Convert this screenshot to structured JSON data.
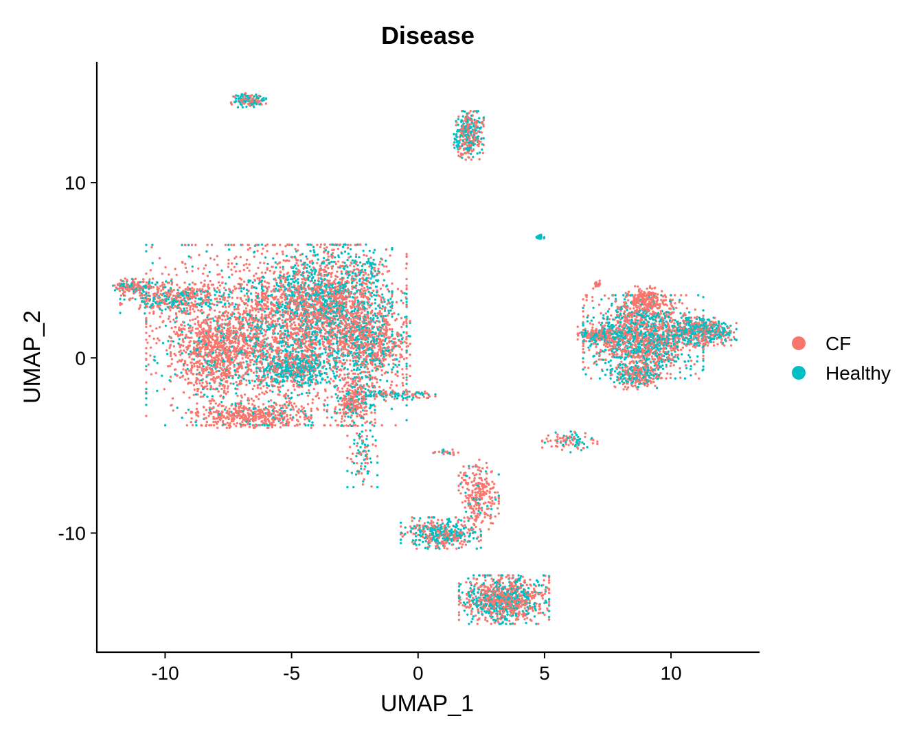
{
  "chart_data": {
    "type": "scatter",
    "title": "Disease",
    "xlabel": "UMAP_1",
    "ylabel": "UMAP_2",
    "xlim": [
      -12.7,
      13.5
    ],
    "ylim": [
      -16.8,
      16.9
    ],
    "xticks": [
      -10,
      -5,
      0,
      5,
      10
    ],
    "xtick_labels": [
      "-10",
      "-5",
      "0",
      "5",
      "10"
    ],
    "yticks": [
      -10,
      0,
      10
    ],
    "ytick_labels": [
      "-10",
      "0",
      "10"
    ],
    "grid": false,
    "legend_position": "right",
    "series": [
      {
        "name": "CF",
        "color": "#F8766D"
      },
      {
        "name": "Healthy",
        "color": "#00BFC4"
      }
    ],
    "clusters": [
      {
        "id": "main-left-body",
        "center": [
          -5.6,
          1.3
        ],
        "spread": [
          2.6,
          2.6
        ],
        "count": 2600,
        "healthy_fraction": 0.28
      },
      {
        "id": "left-arm",
        "center": [
          -9.6,
          3.4
        ],
        "spread": [
          1.1,
          0.45
        ],
        "count": 380,
        "healthy_fraction": 0.35
      },
      {
        "id": "left-tip",
        "center": [
          -11.2,
          4.1
        ],
        "spread": [
          0.45,
          0.25
        ],
        "count": 140,
        "healthy_fraction": 0.3
      },
      {
        "id": "left-lobe",
        "center": [
          -8.0,
          0.4
        ],
        "spread": [
          0.9,
          1.1
        ],
        "count": 650,
        "healthy_fraction": 0.08
      },
      {
        "id": "lower-left-band",
        "center": [
          -6.6,
          -3.3
        ],
        "spread": [
          1.2,
          0.35
        ],
        "count": 400,
        "healthy_fraction": 0.1
      },
      {
        "id": "top-center-dense",
        "center": [
          -3.6,
          3.3
        ],
        "spread": [
          1.3,
          1.6
        ],
        "count": 1400,
        "healthy_fraction": 0.42
      },
      {
        "id": "cyan-core",
        "center": [
          -4.8,
          -0.6
        ],
        "spread": [
          0.8,
          0.5
        ],
        "count": 380,
        "healthy_fraction": 0.8
      },
      {
        "id": "right-body-edge",
        "center": [
          -1.9,
          0.8
        ],
        "spread": [
          0.8,
          1.2
        ],
        "count": 600,
        "healthy_fraction": 0.35
      },
      {
        "id": "lower-stem",
        "center": [
          -2.5,
          -2.5
        ],
        "spread": [
          0.4,
          0.7
        ],
        "count": 280,
        "healthy_fraction": 0.3
      },
      {
        "id": "stem-tail",
        "center": [
          -2.2,
          -5.4
        ],
        "spread": [
          0.3,
          1.0
        ],
        "count": 90,
        "healthy_fraction": 0.55
      },
      {
        "id": "stem-spur",
        "center": [
          -0.9,
          -2.1
        ],
        "spread": [
          0.8,
          0.15
        ],
        "count": 110,
        "healthy_fraction": 0.45
      },
      {
        "id": "upper-spike",
        "center": [
          -1.9,
          5.2
        ],
        "spread": [
          0.35,
          0.5
        ],
        "count": 40,
        "healthy_fraction": 0.8
      },
      {
        "id": "top-left-isle",
        "center": [
          -6.7,
          14.7
        ],
        "spread": [
          0.35,
          0.2
        ],
        "count": 130,
        "healthy_fraction": 0.6
      },
      {
        "id": "top-center-isle",
        "center": [
          2.0,
          12.7
        ],
        "spread": [
          0.3,
          0.7
        ],
        "count": 330,
        "healthy_fraction": 0.5
      },
      {
        "id": "small-isle",
        "center": [
          4.8,
          6.9
        ],
        "spread": [
          0.12,
          0.08
        ],
        "count": 25,
        "healthy_fraction": 0.8
      },
      {
        "id": "tiny-isle",
        "center": [
          7.1,
          4.2
        ],
        "spread": [
          0.12,
          0.12
        ],
        "count": 20,
        "healthy_fraction": 0.1
      },
      {
        "id": "right-main",
        "center": [
          8.9,
          1.2
        ],
        "spread": [
          1.2,
          1.2
        ],
        "count": 1500,
        "healthy_fraction": 0.45
      },
      {
        "id": "right-top-lobe",
        "center": [
          9.0,
          3.3
        ],
        "spread": [
          0.4,
          0.4
        ],
        "count": 200,
        "healthy_fraction": 0.05
      },
      {
        "id": "right-arm",
        "center": [
          11.2,
          1.5
        ],
        "spread": [
          0.7,
          0.4
        ],
        "count": 450,
        "healthy_fraction": 0.55
      },
      {
        "id": "right-left-arm",
        "center": [
          7.3,
          1.3
        ],
        "spread": [
          0.5,
          0.25
        ],
        "count": 200,
        "healthy_fraction": 0.45
      },
      {
        "id": "right-lower",
        "center": [
          8.6,
          -1.0
        ],
        "spread": [
          0.5,
          0.4
        ],
        "count": 250,
        "healthy_fraction": 0.4
      },
      {
        "id": "mid-right-triangle",
        "center": [
          6.0,
          -4.8
        ],
        "spread": [
          0.55,
          0.3
        ],
        "count": 90,
        "healthy_fraction": 0.4
      },
      {
        "id": "mid-tendril",
        "center": [
          2.4,
          -7.8
        ],
        "spread": [
          0.4,
          1.0
        ],
        "count": 250,
        "healthy_fraction": 0.12
      },
      {
        "id": "mid-loop",
        "center": [
          0.9,
          -10.0
        ],
        "spread": [
          0.8,
          0.45
        ],
        "count": 400,
        "healthy_fraction": 0.5
      },
      {
        "id": "bottom-cluster",
        "center": [
          3.4,
          -13.8
        ],
        "spread": [
          0.9,
          0.7
        ],
        "count": 900,
        "healthy_fraction": 0.4
      },
      {
        "id": "mid-small-isle",
        "center": [
          1.1,
          -5.4
        ],
        "spread": [
          0.3,
          0.08
        ],
        "count": 25,
        "healthy_fraction": 0.3
      }
    ]
  }
}
